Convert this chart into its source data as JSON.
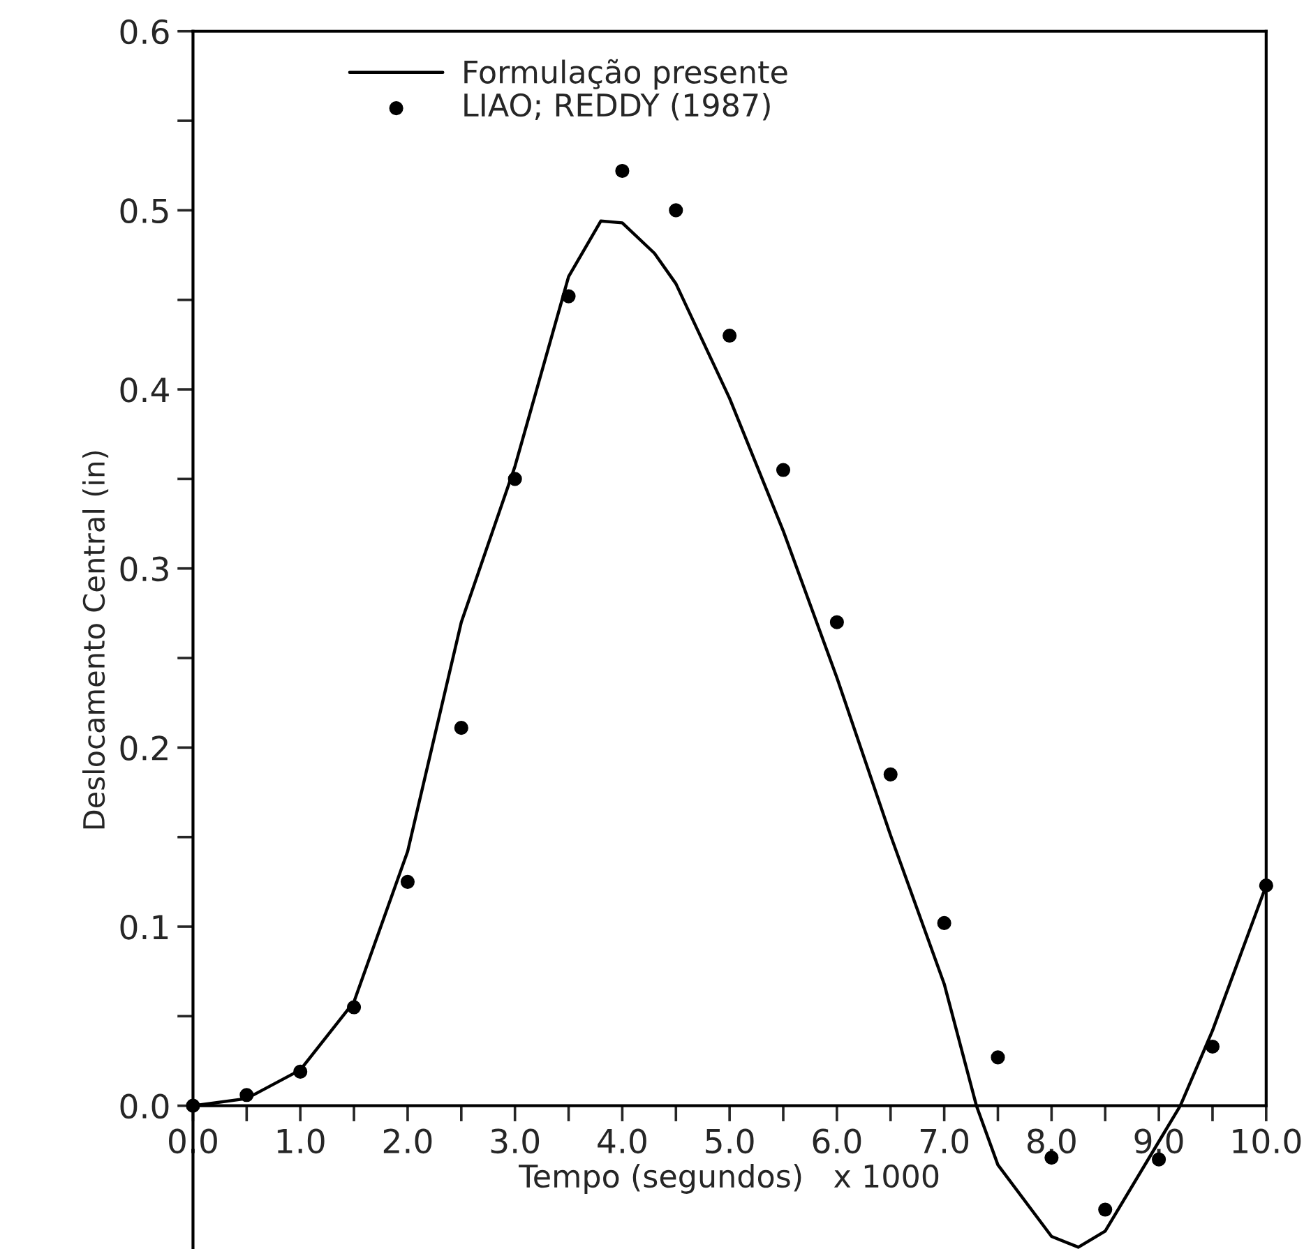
{
  "chart_data": {
    "type": "line",
    "xlabel": "Tempo (segundos)   x 1000",
    "ylabel": "Deslocamento Central (in)",
    "xlim": [
      0,
      10
    ],
    "ylim": [
      -0.08,
      0.6
    ],
    "xticks": [
      {
        "value": 0,
        "label": "0.0"
      },
      {
        "value": 0.5,
        "label": null
      },
      {
        "value": 1,
        "label": "1.0"
      },
      {
        "value": 1.5,
        "label": null
      },
      {
        "value": 2,
        "label": "2.0"
      },
      {
        "value": 2.5,
        "label": null
      },
      {
        "value": 3,
        "label": "3.0"
      },
      {
        "value": 3.5,
        "label": null
      },
      {
        "value": 4,
        "label": "4.0"
      },
      {
        "value": 4.5,
        "label": null
      },
      {
        "value": 5,
        "label": "5.0"
      },
      {
        "value": 5.5,
        "label": null
      },
      {
        "value": 6,
        "label": "6.0"
      },
      {
        "value": 6.5,
        "label": null
      },
      {
        "value": 7,
        "label": "7.0"
      },
      {
        "value": 7.5,
        "label": null
      },
      {
        "value": 8,
        "label": "8.0"
      },
      {
        "value": 8.5,
        "label": null
      },
      {
        "value": 9,
        "label": "9.0"
      },
      {
        "value": 9.5,
        "label": null
      },
      {
        "value": 10,
        "label": "10.0"
      }
    ],
    "yticks": [
      {
        "value": 0,
        "label": "0.0"
      },
      {
        "value": 0.05,
        "label": null
      },
      {
        "value": 0.1,
        "label": "0.1"
      },
      {
        "value": 0.15,
        "label": null
      },
      {
        "value": 0.2,
        "label": "0.2"
      },
      {
        "value": 0.25,
        "label": null
      },
      {
        "value": 0.3,
        "label": "0.3"
      },
      {
        "value": 0.35,
        "label": null
      },
      {
        "value": 0.4,
        "label": "0.4"
      },
      {
        "value": 0.45,
        "label": null
      },
      {
        "value": 0.5,
        "label": "0.5"
      },
      {
        "value": 0.55,
        "label": null
      },
      {
        "value": 0.6,
        "label": "0.6"
      }
    ],
    "grid": false,
    "legend": "top left",
    "series": [
      {
        "name": "Formulação presente",
        "type": "line",
        "color": "#000000",
        "marker": "none",
        "line_style": "solid",
        "x": [
          0,
          0.5,
          1.0,
          1.5,
          2.0,
          2.5,
          3.0,
          3.5,
          3.8,
          4.0,
          4.3,
          4.5,
          5.0,
          5.5,
          6.0,
          6.5,
          7.0,
          7.3,
          7.5,
          8.0,
          8.25,
          8.5,
          9.0,
          9.2,
          9.5,
          10.0
        ],
        "values": [
          0,
          0.004,
          0.02,
          0.058,
          0.142,
          0.27,
          0.357,
          0.463,
          0.494,
          0.493,
          0.476,
          0.459,
          0.395,
          0.321,
          0.239,
          0.151,
          0.068,
          0,
          -0.033,
          -0.073,
          -0.079,
          -0.07,
          -0.02,
          0,
          0.042,
          0.123
        ]
      },
      {
        "name": "LIAO; REDDY (1987)",
        "type": "scatter",
        "color": "#000000",
        "marker": "circle",
        "x": [
          0,
          0.5,
          1.0,
          1.5,
          2.0,
          2.5,
          3.0,
          3.5,
          4.0,
          4.5,
          5.0,
          5.5,
          6.0,
          6.5,
          7.0,
          7.5,
          8.0,
          8.5,
          9.0,
          9.5,
          10.0
        ],
        "values": [
          0,
          0.006,
          0.019,
          0.055,
          0.125,
          0.211,
          0.35,
          0.452,
          0.522,
          0.5,
          0.43,
          0.355,
          0.27,
          0.185,
          0.102,
          0.027,
          -0.029,
          -0.058,
          -0.03,
          0.033,
          0.123
        ]
      }
    ]
  }
}
